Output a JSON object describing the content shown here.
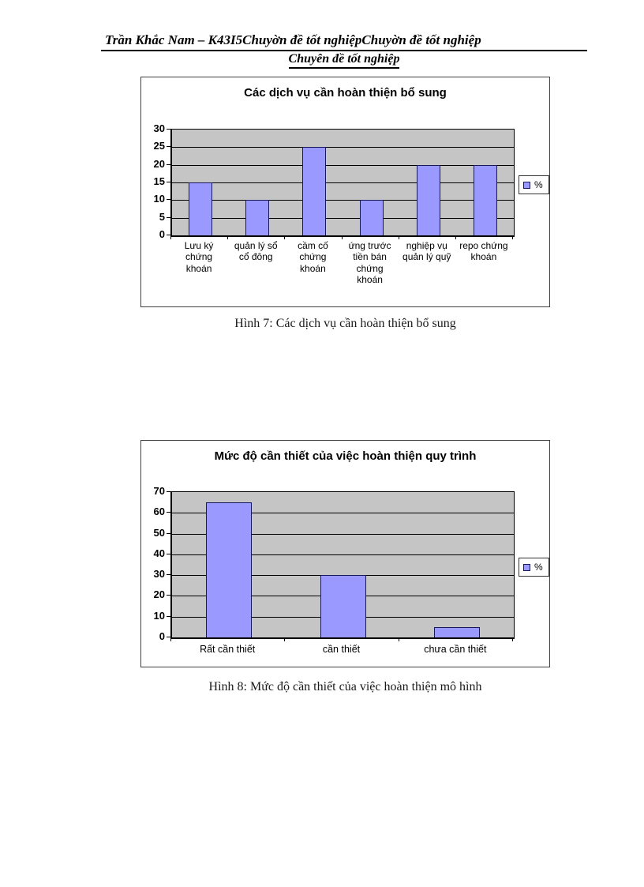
{
  "header": {
    "line1": "Trần Khắc Nam – K43I5Chuyờn đề tốt nghiệpChuyờn đề tốt nghiệp",
    "line2": "Chuyên đề tốt nghiệp"
  },
  "captions": {
    "figure7": "Hình 7: Các dịch vụ cần hoàn thiện bổ sung",
    "figure8": "Hình 8: Mức độ cần thiết của việc hoàn thiện mô hình"
  },
  "chart_data": [
    {
      "type": "bar",
      "title": "Các dịch vụ cần hoàn thiện bổ sung",
      "categories": [
        "Lưu ký chứng khoán",
        "quản lý sổ cổ đông",
        "cầm cố chứng khoán",
        "ứng trước tiền bán chứng khoán",
        "nghiệp vụ quản lý quỹ",
        "repo chứng khoán"
      ],
      "values": [
        15,
        10,
        25,
        10,
        20,
        20
      ],
      "legend": [
        "%"
      ],
      "legend_position": "right",
      "xlabel": "",
      "ylabel": "",
      "ylim": [
        0,
        30
      ],
      "yticks": [
        0,
        5,
        10,
        15,
        20,
        25,
        30
      ],
      "grid": true,
      "colors": {
        "bar": "#9999FF",
        "bar_border": "#17175E",
        "plot_bg": "#C5C5C5",
        "grid": "#000000"
      }
    },
    {
      "type": "bar",
      "title": "Mức độ cần thiết của việc hoàn thiện quy trình",
      "categories": [
        "Rất cần thiết",
        "cần thiết",
        "chưa cần thiết"
      ],
      "values": [
        65,
        30,
        5
      ],
      "legend": [
        "%"
      ],
      "legend_position": "right",
      "xlabel": "",
      "ylabel": "",
      "ylim": [
        0,
        70
      ],
      "yticks": [
        0,
        10,
        20,
        30,
        40,
        50,
        60,
        70
      ],
      "grid": true,
      "colors": {
        "bar": "#9999FF",
        "bar_border": "#17175E",
        "plot_bg": "#C5C5C5",
        "grid": "#000000"
      }
    }
  ]
}
